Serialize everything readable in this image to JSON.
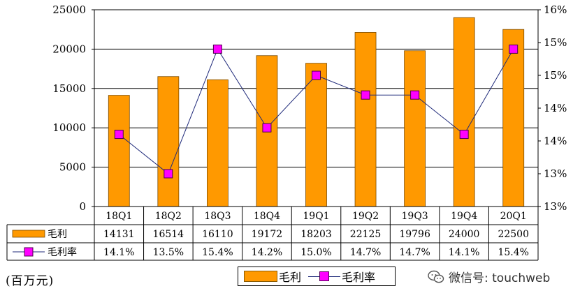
{
  "chart_data": {
    "type": "bar",
    "categories": [
      "18Q1",
      "18Q2",
      "18Q3",
      "18Q4",
      "19Q1",
      "19Q2",
      "19Q3",
      "19Q4",
      "20Q1"
    ],
    "series": [
      {
        "name": "毛利",
        "kind": "bar",
        "axis": "left",
        "color": "#FF9900",
        "values": [
          14131,
          16514,
          16110,
          19172,
          18203,
          22125,
          19796,
          24000,
          22500
        ]
      },
      {
        "name": "毛利率",
        "kind": "line",
        "axis": "right",
        "color": "#FF00FF",
        "values": [
          14.1,
          13.5,
          15.4,
          14.2,
          15.0,
          14.7,
          14.7,
          14.1,
          15.4
        ],
        "labels": [
          "14.1%",
          "13.5%",
          "15.4%",
          "14.2%",
          "15.0%",
          "14.7%",
          "14.7%",
          "14.1%",
          "15.4%"
        ]
      }
    ],
    "ylim": [
      0,
      25000
    ],
    "yticks": [
      "0",
      "5000",
      "10000",
      "15000",
      "20000",
      "25000"
    ],
    "y2lim": [
      13,
      16
    ],
    "y2ticks": [
      "13%",
      "13%",
      "14%",
      "14%",
      "15%",
      "15%",
      "16%"
    ],
    "grid": true,
    "data_table": true,
    "legend": "bottom"
  },
  "unit_note": "(百万元)",
  "legend": {
    "bar_label": "毛利",
    "line_label": "毛利率"
  },
  "watermark": {
    "text": "微信号: touchweb",
    "icon": "wechat-icon"
  },
  "colors": {
    "bar": "#FF9900",
    "marker": "#FF00FF",
    "line": "#1f2a7a"
  }
}
